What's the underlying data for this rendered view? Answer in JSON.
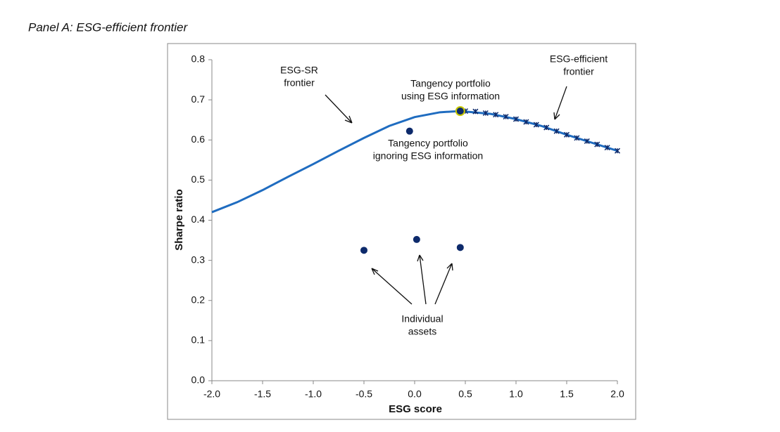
{
  "chart_data": {
    "type": "line",
    "title": "Panel A: ESG-efficient frontier",
    "x_label": "ESG score",
    "y_label": "Sharpe ratio",
    "xlim": [
      -2.0,
      2.0
    ],
    "ylim": [
      0,
      0.8
    ],
    "xticks": [
      {
        "value": -2,
        "label": "-2.0"
      },
      -1.5,
      {
        "value": -1,
        "label": "-1.0"
      },
      -0.5,
      {
        "value": 0,
        "label": "0.0"
      },
      0.5,
      {
        "value": 1,
        "label": "1.0"
      },
      1.5,
      {
        "value": 2,
        "label": "2.0"
      }
    ],
    "yticks": [
      {
        "value": 0,
        "label": "0.0"
      },
      0.1,
      0.2,
      0.3,
      0.4,
      0.5,
      0.6,
      0.7,
      0.8
    ],
    "grid": false,
    "series": [
      {
        "type": "line",
        "color": "#1f6cc0",
        "x": [
          -2.0,
          -1.75,
          -1.5,
          -1.25,
          -1.0,
          -0.75,
          -0.5,
          -0.25,
          0.0,
          0.25,
          0.45,
          0.75,
          1.0,
          1.25,
          1.5,
          1.75,
          2.0
        ],
        "values": [
          0.42,
          0.445,
          0.475,
          0.508,
          0.54,
          0.573,
          0.605,
          0.635,
          0.657,
          0.669,
          0.672,
          0.665,
          0.652,
          0.635,
          0.613,
          0.593,
          0.573
        ]
      },
      {
        "type": "star",
        "color": "#0d2a6b",
        "x": [
          0.5,
          0.6,
          0.7,
          0.8,
          0.9,
          1.0,
          1.1,
          1.2,
          1.3,
          1.4,
          1.5,
          1.6,
          1.7,
          1.8,
          1.9,
          2.0
        ],
        "values": [
          0.672,
          0.671,
          0.667,
          0.663,
          0.658,
          0.652,
          0.645,
          0.638,
          0.631,
          0.622,
          0.613,
          0.605,
          0.597,
          0.589,
          0.581,
          0.573
        ]
      },
      {
        "type": "highlight",
        "color": "#0d2a6b",
        "outline": "#c8c800",
        "x": [
          0.45
        ],
        "values": [
          0.672
        ]
      },
      {
        "type": "scatter",
        "color": "#0d2a6b",
        "x": [
          -0.05,
          -0.5,
          0.02,
          0.45
        ],
        "values": [
          0.622,
          0.325,
          0.352,
          0.332
        ]
      }
    ],
    "annotations": [
      [
        "ESG-SR",
        "frontier"
      ],
      [
        "Tangency portfolio",
        "using ESG information"
      ],
      [
        "ESG-efficient",
        "frontier"
      ],
      [
        "Tangency portfolio",
        "ignoring ESG information"
      ],
      [
        "Individual",
        "assets"
      ]
    ]
  }
}
